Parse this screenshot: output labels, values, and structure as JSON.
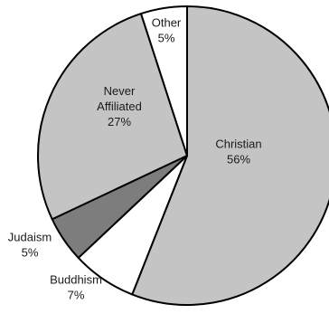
{
  "chart_data": {
    "type": "pie",
    "title": "",
    "start": "12 o'clock",
    "direction": "clockwise",
    "legend": "none (labels on slices)",
    "slices": [
      {
        "label": "Christian",
        "value": 56,
        "value_text": "56%",
        "color": "#c4c4c4"
      },
      {
        "label": "Buddhism",
        "value": 7,
        "value_text": "7%",
        "color": "#ffffff"
      },
      {
        "label": "Judaism",
        "value": 5,
        "value_text": "5%",
        "color": "#7d7d7d"
      },
      {
        "label": "Never Affiliated",
        "value": 27,
        "value_text": "27%",
        "color": "#c4c4c4"
      },
      {
        "label": "Other",
        "value": 5,
        "value_text": "5%",
        "color": "#ffffff"
      }
    ]
  }
}
